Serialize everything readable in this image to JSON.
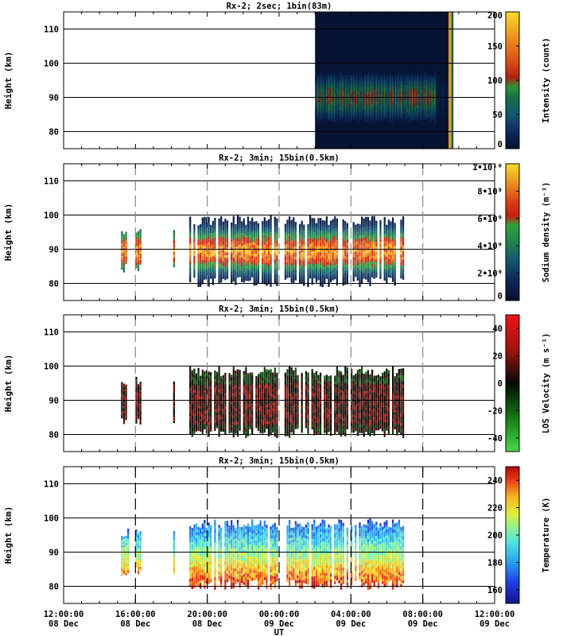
{
  "figure": {
    "x_axis_label": "UT",
    "x_tick_labels": [
      {
        "time": "12:00:00",
        "date": "08 Dec"
      },
      {
        "time": "16:00:00",
        "date": "08 Dec"
      },
      {
        "time": "20:00:00",
        "date": "08 Dec"
      },
      {
        "time": "00:00:00",
        "date": "09 Dec"
      },
      {
        "time": "04:00:00",
        "date": "09 Dec"
      },
      {
        "time": "08:00:00",
        "date": "09 Dec"
      },
      {
        "time": "12:00:00",
        "date": "09 Dec"
      }
    ]
  },
  "chart_data": [
    {
      "type": "heatmap",
      "title": "Rx-2;  2sec; 1bin(83m)",
      "ylabel": "Height (km)",
      "xlabel": "UT",
      "x_range": [
        "08 Dec 12:00:00",
        "09 Dec 12:00:00"
      ],
      "ylim": [
        75,
        115
      ],
      "y_ticks": [
        80,
        90,
        100,
        110
      ],
      "grid": true,
      "colorbar": {
        "label": "Intensity (count)",
        "range": [
          0,
          200
        ],
        "ticks": [
          "0",
          "50",
          "100",
          "150",
          "200"
        ]
      },
      "observation_window_ut_hours": [
        14.0,
        21.7
      ],
      "layer_center_km": 90,
      "layer_extent_km": [
        82,
        98
      ]
    },
    {
      "type": "heatmap",
      "title": "Rx-2; 3min; 15bin(0.5km)",
      "ylabel": "Height (km)",
      "xlabel": "UT",
      "x_range": [
        "08 Dec 12:00:00",
        "09 Dec 12:00:00"
      ],
      "ylim": [
        75,
        115
      ],
      "y_ticks": [
        80,
        90,
        100,
        110
      ],
      "grid": true,
      "colorbar": {
        "label": "Sodium density (m⁻³)",
        "range": [
          0,
          10000000000.0
        ],
        "ticks": [
          "0",
          "2•10⁹",
          "4•10⁹",
          "6•10⁹",
          "8•10⁹",
          "1•10¹⁰"
        ]
      },
      "dashed_vertical_lines_ut_hours": [
        4,
        8,
        12,
        16,
        20
      ],
      "data_segments_ut_hours": [
        [
          3.2,
          3.6
        ],
        [
          4.0,
          4.3
        ],
        [
          6.1,
          6.2
        ],
        [
          7.0,
          11.9
        ],
        [
          12.3,
          18.9
        ]
      ],
      "layer_center_km": 90,
      "layer_extent_km": [
        79,
        100
      ]
    },
    {
      "type": "heatmap",
      "title": "Rx-2; 3min; 15bin(0.5km)",
      "ylabel": "Height (km)",
      "xlabel": "UT",
      "x_range": [
        "08 Dec 12:00:00",
        "09 Dec 12:00:00"
      ],
      "ylim": [
        75,
        115
      ],
      "y_ticks": [
        80,
        90,
        100,
        110
      ],
      "grid": true,
      "colorbar": {
        "label": "LOS Velocity (m s⁻¹)",
        "range": [
          -50,
          50
        ],
        "ticks": [
          "-40",
          "-20",
          "0",
          "20",
          "40"
        ]
      },
      "dashed_vertical_lines_ut_hours": [
        4,
        8,
        12,
        16,
        20
      ],
      "data_segments_ut_hours": [
        [
          3.2,
          3.6
        ],
        [
          4.0,
          4.3
        ],
        [
          6.1,
          6.2
        ],
        [
          7.0,
          11.9
        ],
        [
          12.3,
          18.9
        ]
      ],
      "layer_extent_km": [
        79,
        100
      ]
    },
    {
      "type": "heatmap",
      "title": "Rx-2; 3min; 15bin(0.5km)",
      "ylabel": "Height (km)",
      "xlabel": "UT",
      "x_range": [
        "08 Dec 12:00:00",
        "09 Dec 12:00:00"
      ],
      "ylim": [
        75,
        115
      ],
      "y_ticks": [
        80,
        90,
        100,
        110
      ],
      "grid": true,
      "colorbar": {
        "label": "Temperature (K)",
        "range": [
          150,
          250
        ],
        "ticks": [
          "160",
          "180",
          "200",
          "220",
          "240"
        ]
      },
      "dashed_vertical_lines_ut_hours": [
        4,
        8,
        12,
        16,
        20
      ],
      "data_segments_ut_hours": [
        [
          3.2,
          3.6
        ],
        [
          4.0,
          4.3
        ],
        [
          6.1,
          6.2
        ],
        [
          7.0,
          11.9
        ],
        [
          12.3,
          18.9
        ]
      ],
      "layer_extent_km": [
        79,
        100
      ]
    }
  ]
}
